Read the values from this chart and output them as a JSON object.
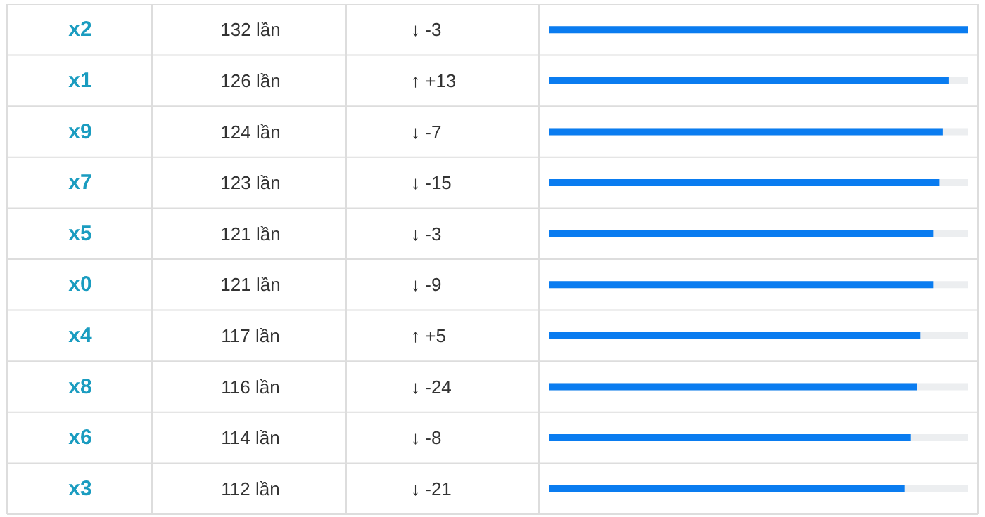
{
  "chart_data": {
    "type": "bar",
    "orientation": "horizontal",
    "categories": [
      "x2",
      "x1",
      "x9",
      "x7",
      "x5",
      "x0",
      "x4",
      "x8",
      "x6",
      "x3"
    ],
    "values": [
      132,
      126,
      124,
      123,
      121,
      121,
      117,
      116,
      114,
      112
    ],
    "value_labels": [
      "132 lần",
      "126 lần",
      "124 lần",
      "123 lần",
      "121 lần",
      "121 lần",
      "117 lần",
      "116 lần",
      "114 lần",
      "112 lần"
    ],
    "color": "#0a7cf0",
    "xlim": [
      0,
      132
    ],
    "annotations": [
      "↓ -3",
      "↑ +13",
      "↓ -7",
      "↓ -15",
      "↓ -3",
      "↓ -9",
      "↑ +5",
      "↓ -24",
      "↓ -8",
      "↓ -21"
    ]
  }
}
